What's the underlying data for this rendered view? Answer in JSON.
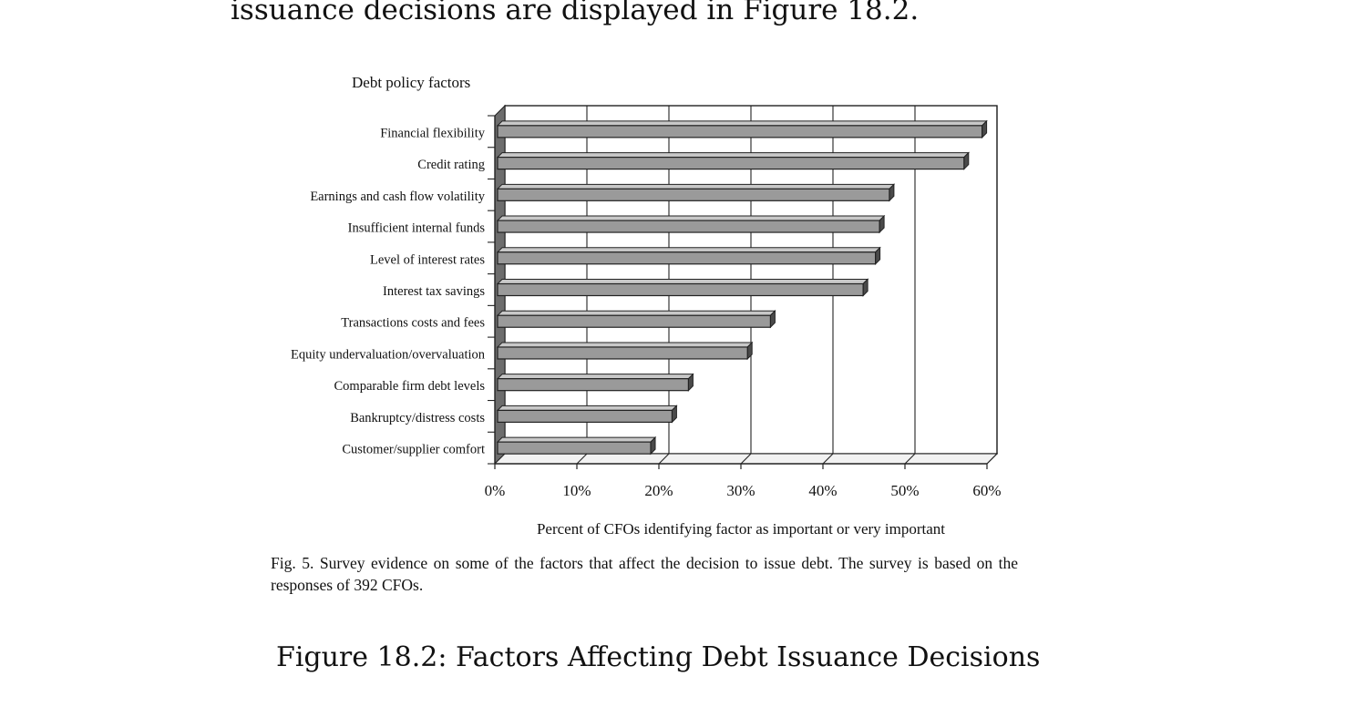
{
  "intro_text": "issuance decisions are displayed in Figure 18.2.",
  "figure_caption": "Figure 18.2: Factors Affecting Debt Issuance Decisions",
  "inner_caption": "Fig. 5. Survey evidence on some of the factors that affect the decision to issue debt. The survey is based on the responses of 392 CFOs.",
  "chart_data": {
    "type": "bar",
    "orientation": "horizontal",
    "title": "Debt policy factors",
    "xlabel": "Percent of CFOs identifying factor as important or very important",
    "ylabel": "",
    "xlim": [
      0,
      60
    ],
    "x_ticks": [
      "0%",
      "10%",
      "20%",
      "30%",
      "40%",
      "50%",
      "60%"
    ],
    "grid": true,
    "bar_color": "#9a9a9a",
    "categories": [
      "Financial flexibility",
      "Credit rating",
      "Earnings and cash flow volatility",
      "Insufficient internal funds",
      "Level of interest rates",
      "Interest tax savings",
      "Transactions costs and fees",
      "Equity undervaluation/overvaluation",
      "Comparable firm debt levels",
      "Bankruptcy/distress costs",
      "Customer/supplier comfort"
    ],
    "values": [
      59.4,
      57.2,
      48.1,
      46.9,
      46.4,
      44.9,
      33.6,
      30.8,
      23.6,
      21.6,
      19.0
    ]
  }
}
